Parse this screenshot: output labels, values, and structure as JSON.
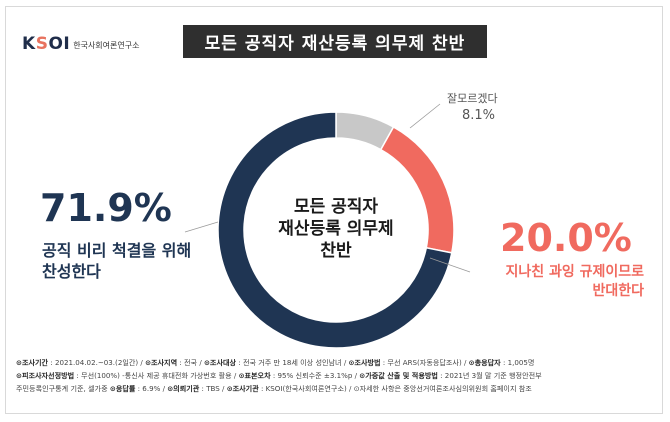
{
  "brand": {
    "logo_text": "KSOI",
    "org_name": "한국사회여론연구소"
  },
  "title": "모든 공직자 재산등록 의무제 찬반",
  "chart_data": {
    "type": "pie",
    "donut": true,
    "center_label": [
      "모든 공직자",
      "재산등록 의무제",
      "찬반"
    ],
    "slices": [
      {
        "label": [
          "공직 비리 척결을 위해",
          "찬성한다"
        ],
        "value": 71.9,
        "display": "71.9%",
        "color": "#1f3553"
      },
      {
        "label": [
          "지나친 과잉 규제이므로",
          "반대한다"
        ],
        "value": 20.0,
        "display": "20.0%",
        "color": "#f06a5f"
      },
      {
        "label": [
          "잘모르겠다"
        ],
        "value": 8.1,
        "display": "8.1%",
        "color": "#c8c8c8"
      }
    ]
  },
  "footer": {
    "line1": [
      {
        "key": "조사기간",
        "value": "2021.04.02.~03.(2일간)"
      },
      {
        "key": "조사지역",
        "value": "전국"
      },
      {
        "key": "조사대상",
        "value": "전국 거주 만 18세 이상 성인남녀"
      },
      {
        "key": "조사방법",
        "value": "무선 ARS(자동응답조사)"
      },
      {
        "key": "총응답자",
        "value": "1,005명"
      }
    ],
    "line2": [
      {
        "key": "피조사자선정방법",
        "value": "무선(100%) -통신사 제공 휴대전화 가상번호 활용"
      },
      {
        "key": "표본오차",
        "value": "95% 신뢰수준 ±3.1%p"
      },
      {
        "key": "가중값 산출 및 적용방법",
        "value": "2021년 3월 말 기준 행정안전부"
      }
    ],
    "line3_prefix": "주민등록인구통계 기준, 셀가중",
    "line3": [
      {
        "key": "응답률",
        "value": "6.9%"
      },
      {
        "key": "의뢰기관",
        "value": "TBS"
      },
      {
        "key": "조사기관",
        "value": "KSOI(한국사회여론연구소)"
      }
    ],
    "note": "자세한 사항은 중앙선거여론조사심의위원회 홈페이지 참조"
  }
}
